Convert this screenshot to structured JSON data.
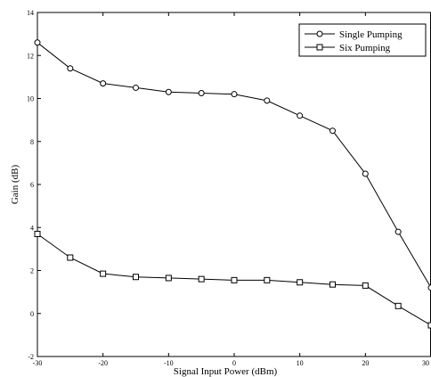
{
  "chart_data": {
    "type": "line",
    "title": "",
    "xlabel": "Signal Input Power (dBm)",
    "ylabel": "Gain (dB)",
    "xlim": [
      -30,
      30
    ],
    "ylim": [
      -2,
      14
    ],
    "xticks": [
      -30,
      -20,
      -10,
      0,
      10,
      20,
      30
    ],
    "yticks": [
      -2,
      0,
      2,
      4,
      6,
      8,
      10,
      12,
      14
    ],
    "grid": false,
    "legend_position": "top-right",
    "series": [
      {
        "name": "Single Pumping",
        "marker": "circle",
        "x": [
          -30,
          -25,
          -20,
          -15,
          -10,
          -5,
          0,
          5,
          10,
          15,
          20,
          25,
          30
        ],
        "y": [
          12.6,
          11.4,
          10.7,
          10.5,
          10.3,
          10.25,
          10.2,
          9.9,
          9.2,
          8.5,
          6.5,
          3.8,
          1.2
        ]
      },
      {
        "name": "Six Pumping",
        "marker": "square",
        "x": [
          -30,
          -25,
          -20,
          -15,
          -10,
          -5,
          0,
          5,
          10,
          15,
          20,
          25,
          30
        ],
        "y": [
          3.7,
          2.6,
          1.85,
          1.7,
          1.65,
          1.6,
          1.55,
          1.55,
          1.45,
          1.35,
          1.3,
          0.35,
          -0.55
        ]
      }
    ]
  }
}
